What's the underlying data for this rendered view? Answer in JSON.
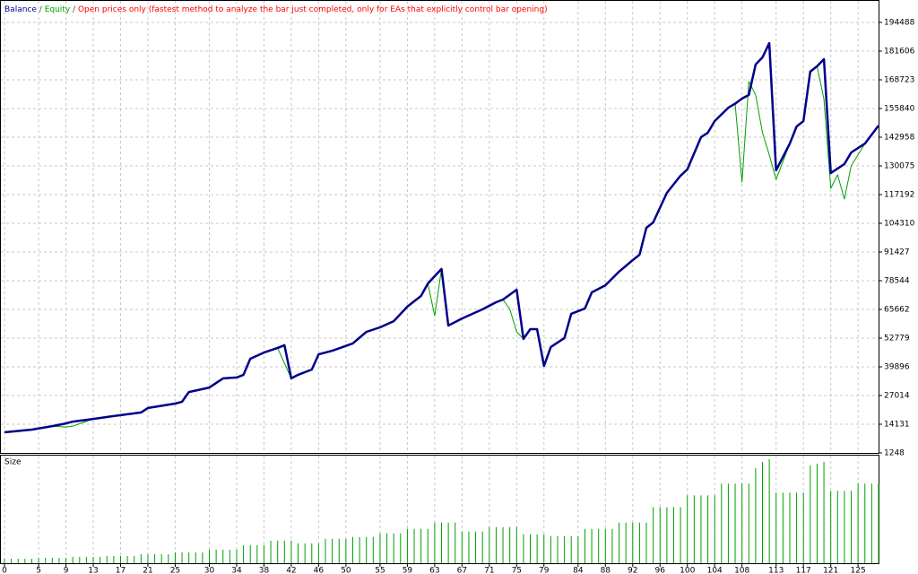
{
  "chart_data": [
    {
      "type": "line",
      "subtitle": "Open prices only (fastest method to analyze the bar just completed, only for EAs that explicitly control bar opening)",
      "separator": "/",
      "subtitle_color": "#ff0000",
      "x": [
        0,
        4,
        7,
        9,
        10,
        13,
        16,
        20,
        21,
        25,
        26,
        27,
        30,
        32,
        34,
        35,
        36,
        38,
        40,
        41,
        42,
        43,
        45,
        46,
        48,
        51,
        53,
        55,
        57,
        59,
        61,
        62,
        63,
        64,
        65,
        67,
        70,
        72,
        73,
        74,
        75,
        76,
        77,
        78,
        79,
        80,
        82,
        83,
        85,
        86,
        88,
        90,
        92,
        93,
        94,
        95,
        97,
        99,
        100,
        102,
        103,
        104,
        106,
        107,
        108,
        109,
        110,
        111,
        112,
        113,
        115,
        116,
        117,
        118,
        119,
        120,
        121,
        122,
        123,
        124,
        126,
        128
      ],
      "series": [
        {
          "name": "Balance",
          "color": "#00008b",
          "values": [
            10500,
            11700,
            13300,
            14500,
            15300,
            16500,
            17800,
            19400,
            21400,
            23400,
            24200,
            28600,
            30600,
            34700,
            35100,
            36300,
            43500,
            46300,
            48400,
            49600,
            34700,
            36300,
            38700,
            45500,
            47100,
            50400,
            55600,
            57600,
            60400,
            66900,
            71700,
            77300,
            80600,
            83800,
            58400,
            61600,
            65700,
            68900,
            70100,
            72300,
            74500,
            52400,
            56800,
            56800,
            40300,
            48800,
            52800,
            63700,
            66100,
            73300,
            76500,
            82600,
            87800,
            90200,
            102300,
            104700,
            118000,
            125700,
            128500,
            143000,
            145000,
            150200,
            156200,
            158000,
            160300,
            161900,
            175600,
            178800,
            185200,
            128100,
            140100,
            147800,
            150200,
            172400,
            174800,
            178000,
            126900,
            128900,
            130900,
            136100,
            140100,
            148200
          ]
        },
        {
          "name": "Equity",
          "color": "#00a000",
          "values": [
            10500,
            11700,
            13300,
            12900,
            13300,
            16500,
            17800,
            19400,
            21400,
            23400,
            24200,
            28600,
            30600,
            34700,
            35100,
            36300,
            43500,
            46300,
            48400,
            41500,
            34700,
            36300,
            38700,
            45500,
            47100,
            50400,
            55600,
            57600,
            60400,
            66900,
            71700,
            77300,
            62800,
            83800,
            58400,
            61600,
            65700,
            68900,
            70100,
            65700,
            55600,
            52400,
            56800,
            56800,
            40300,
            48800,
            52800,
            63700,
            66100,
            73300,
            76500,
            82600,
            87800,
            90200,
            102300,
            104700,
            118000,
            125700,
            128500,
            143000,
            145000,
            150200,
            156200,
            158000,
            122800,
            168000,
            161900,
            145000,
            135000,
            124000,
            140100,
            147800,
            150200,
            172400,
            174800,
            160000,
            120000,
            126100,
            115200,
            130100,
            140100,
            148200
          ]
        }
      ],
      "xlim": [
        0,
        128
      ],
      "xticks": [
        0,
        5,
        9,
        13,
        17,
        21,
        25,
        30,
        34,
        38,
        42,
        46,
        50,
        55,
        59,
        63,
        67,
        71,
        75,
        79,
        84,
        88,
        92,
        96,
        100,
        104,
        108,
        113,
        117,
        121,
        125
      ],
      "ylim": [
        1248,
        194488
      ],
      "yticks": [
        1248,
        14131,
        27014,
        39896,
        52779,
        65662,
        78544,
        91427,
        104310,
        117192,
        130075,
        142958,
        155840,
        168723,
        181606,
        194488
      ],
      "grid": true
    },
    {
      "type": "bar",
      "title": "Size",
      "color": "#00a000",
      "values": [
        0.05,
        0.05,
        0.05,
        0.05,
        0.05,
        0.06,
        0.06,
        0.06,
        0.06,
        0.06,
        0.07,
        0.07,
        0.07,
        0.07,
        0.07,
        0.08,
        0.08,
        0.08,
        0.08,
        0.08,
        0.1,
        0.1,
        0.1,
        0.1,
        0.1,
        0.12,
        0.12,
        0.12,
        0.12,
        0.12,
        0.15,
        0.15,
        0.15,
        0.15,
        0.15,
        0.2,
        0.2,
        0.2,
        0.2,
        0.25,
        0.25,
        0.25,
        0.25,
        0.22,
        0.22,
        0.22,
        0.22,
        0.27,
        0.27,
        0.27,
        0.27,
        0.29,
        0.29,
        0.29,
        0.29,
        0.33,
        0.33,
        0.33,
        0.33,
        0.38,
        0.38,
        0.38,
        0.38,
        0.45,
        0.45,
        0.45,
        0.45,
        0.35,
        0.35,
        0.35,
        0.35,
        0.4,
        0.4,
        0.4,
        0.4,
        0.4,
        0.32,
        0.32,
        0.32,
        0.32,
        0.3,
        0.3,
        0.3,
        0.3,
        0.3,
        0.38,
        0.38,
        0.38,
        0.38,
        0.38,
        0.45,
        0.45,
        0.45,
        0.45,
        0.45,
        0.62,
        0.62,
        0.62,
        0.62,
        0.62,
        0.75,
        0.75,
        0.75,
        0.75,
        0.75,
        0.88,
        0.88,
        0.88,
        0.88,
        0.88,
        1.05,
        1.12,
        1.15,
        0.78,
        0.78,
        0.78,
        0.78,
        0.78,
        1.08,
        1.1,
        1.12,
        0.8,
        0.8,
        0.8,
        0.8,
        0.88,
        0.88,
        0.88,
        0.88
      ]
    }
  ]
}
